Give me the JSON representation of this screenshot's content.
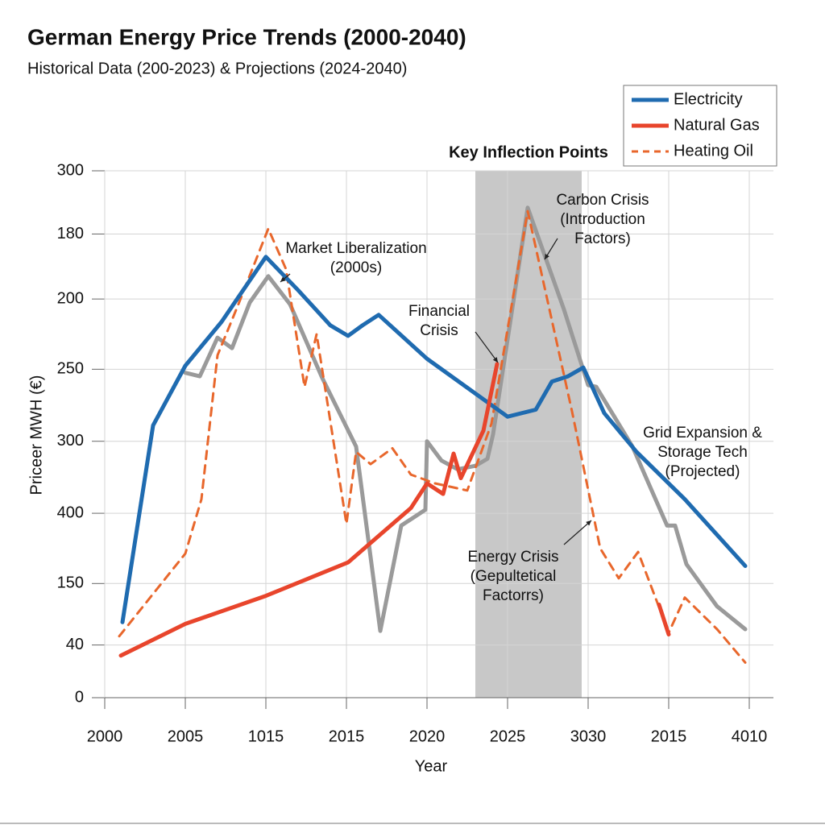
{
  "chart_data": {
    "type": "line",
    "title": "German Energy Price Trends (2000-2040)",
    "subtitle": "Historical Data (200-2023) & Projections (2024-2040)",
    "x_label": "Year",
    "y_label": "Priceer MWH (€)",
    "xlim": [
      2000,
      2041.5
    ],
    "ylim": [
      0,
      300
    ],
    "xticks": [
      2000,
      2005,
      {
        "value": 2010,
        "label": "1015"
      },
      2015,
      2020,
      2025,
      {
        "value": 2030,
        "label": "3030"
      },
      {
        "value": 2035,
        "label": "2015"
      },
      {
        "value": 2040,
        "label": "4010"
      }
    ],
    "yticks": [
      0,
      {
        "value": 30,
        "label": "40"
      },
      {
        "value": 65,
        "label": "150"
      },
      {
        "value": 105,
        "label": "400"
      },
      {
        "value": 146,
        "label": "300"
      },
      {
        "value": 187,
        "label": "250"
      },
      {
        "value": 227,
        "label": "200"
      },
      {
        "value": 264,
        "label": "180"
      },
      300
    ],
    "grid": true,
    "legend": "top-right",
    "shaded_region": {
      "x": [
        2023,
        2029.6
      ],
      "label": "Key Inflection Points",
      "color": "#c8c8c8"
    },
    "series": [
      {
        "name": "Electricity",
        "color": "#1f6bb0",
        "dashed": false,
        "x": [
          2001.1,
          2003,
          2005,
          2007.25,
          2010,
          2012,
          2014,
          2015.1,
          2016,
          2017,
          2020,
          2025,
          2026.75,
          2027.75,
          2028.75,
          2029.7,
          2031,
          2033,
          2036,
          2039.75
        ],
        "values": [
          43,
          155,
          189,
          214,
          251,
          232,
          212,
          206,
          212,
          218,
          193,
          160,
          164,
          180,
          183,
          188,
          162,
          140,
          113,
          75
        ]
      },
      {
        "name": "Natural Gas",
        "color": "#e8452c",
        "dashed": false,
        "x": [
          2001,
          2005,
          2010,
          2015.1,
          2019,
          2020,
          2021,
          2021.65,
          2022.1,
          2023.5,
          2024.35,
          2030,
          2034.4,
          2035
        ],
        "values": [
          24,
          42,
          58,
          77,
          108,
          122,
          116,
          139,
          125,
          152,
          190,
          null,
          53,
          36
        ]
      },
      {
        "name": "Heating Oil",
        "color": "#e8672c",
        "dashed": true,
        "x": [
          2000.9,
          2005,
          2006,
          2007,
          2008.25,
          2010.15,
          2011.25,
          2012.4,
          2013.15,
          2015,
          2015.6,
          2016.5,
          2017.85,
          2019,
          2020.5,
          2021.5,
          2022.5,
          2024,
          2026.25,
          2029,
          2030.75,
          2031.9,
          2033.1,
          2035,
          2036,
          2038,
          2039.75
        ],
        "values": [
          35,
          82,
          113,
          195,
          223,
          267,
          244,
          177,
          207,
          99,
          140,
          133,
          142,
          127,
          122,
          120,
          118,
          156,
          277,
          163,
          85,
          68,
          83,
          37,
          57,
          39,
          20
        ]
      },
      {
        "color": "#9a9a9a",
        "dashed": false,
        "x": [
          2005,
          2005.9,
          2007,
          2007.9,
          2009,
          2010.15,
          2011.5,
          2013.5,
          2015.6,
          2017.1,
          2018.4,
          2019.9,
          2020,
          2020.9,
          2021.9,
          2023,
          2023.75,
          2024.1,
          2026.25,
          2028.5,
          2030,
          2030.5,
          2032.75,
          2034.9,
          2035.4,
          2036.1,
          2038,
          2039.75
        ],
        "values": [
          185,
          183,
          205,
          199,
          225,
          240,
          224,
          182,
          143,
          38,
          98,
          107,
          146,
          135,
          130,
          132,
          136,
          150,
          279,
          221,
          178,
          177,
          143,
          98,
          98,
          76,
          52,
          39
        ]
      }
    ],
    "annotations": [
      {
        "lines": [
          "Market Liberalization",
          "(2000s)"
        ]
      },
      {
        "lines": [
          "Financial",
          "Crisis"
        ]
      },
      {
        "lines": [
          "Carbon Crisis",
          "(Introduction",
          "Factors)"
        ]
      },
      {
        "lines": [
          "Energy Crisis",
          "(Gepultetical",
          "Factorrs)"
        ]
      },
      {
        "lines": [
          "Grid Expansion &",
          "Storage Tech",
          "(Projected)"
        ]
      }
    ]
  }
}
